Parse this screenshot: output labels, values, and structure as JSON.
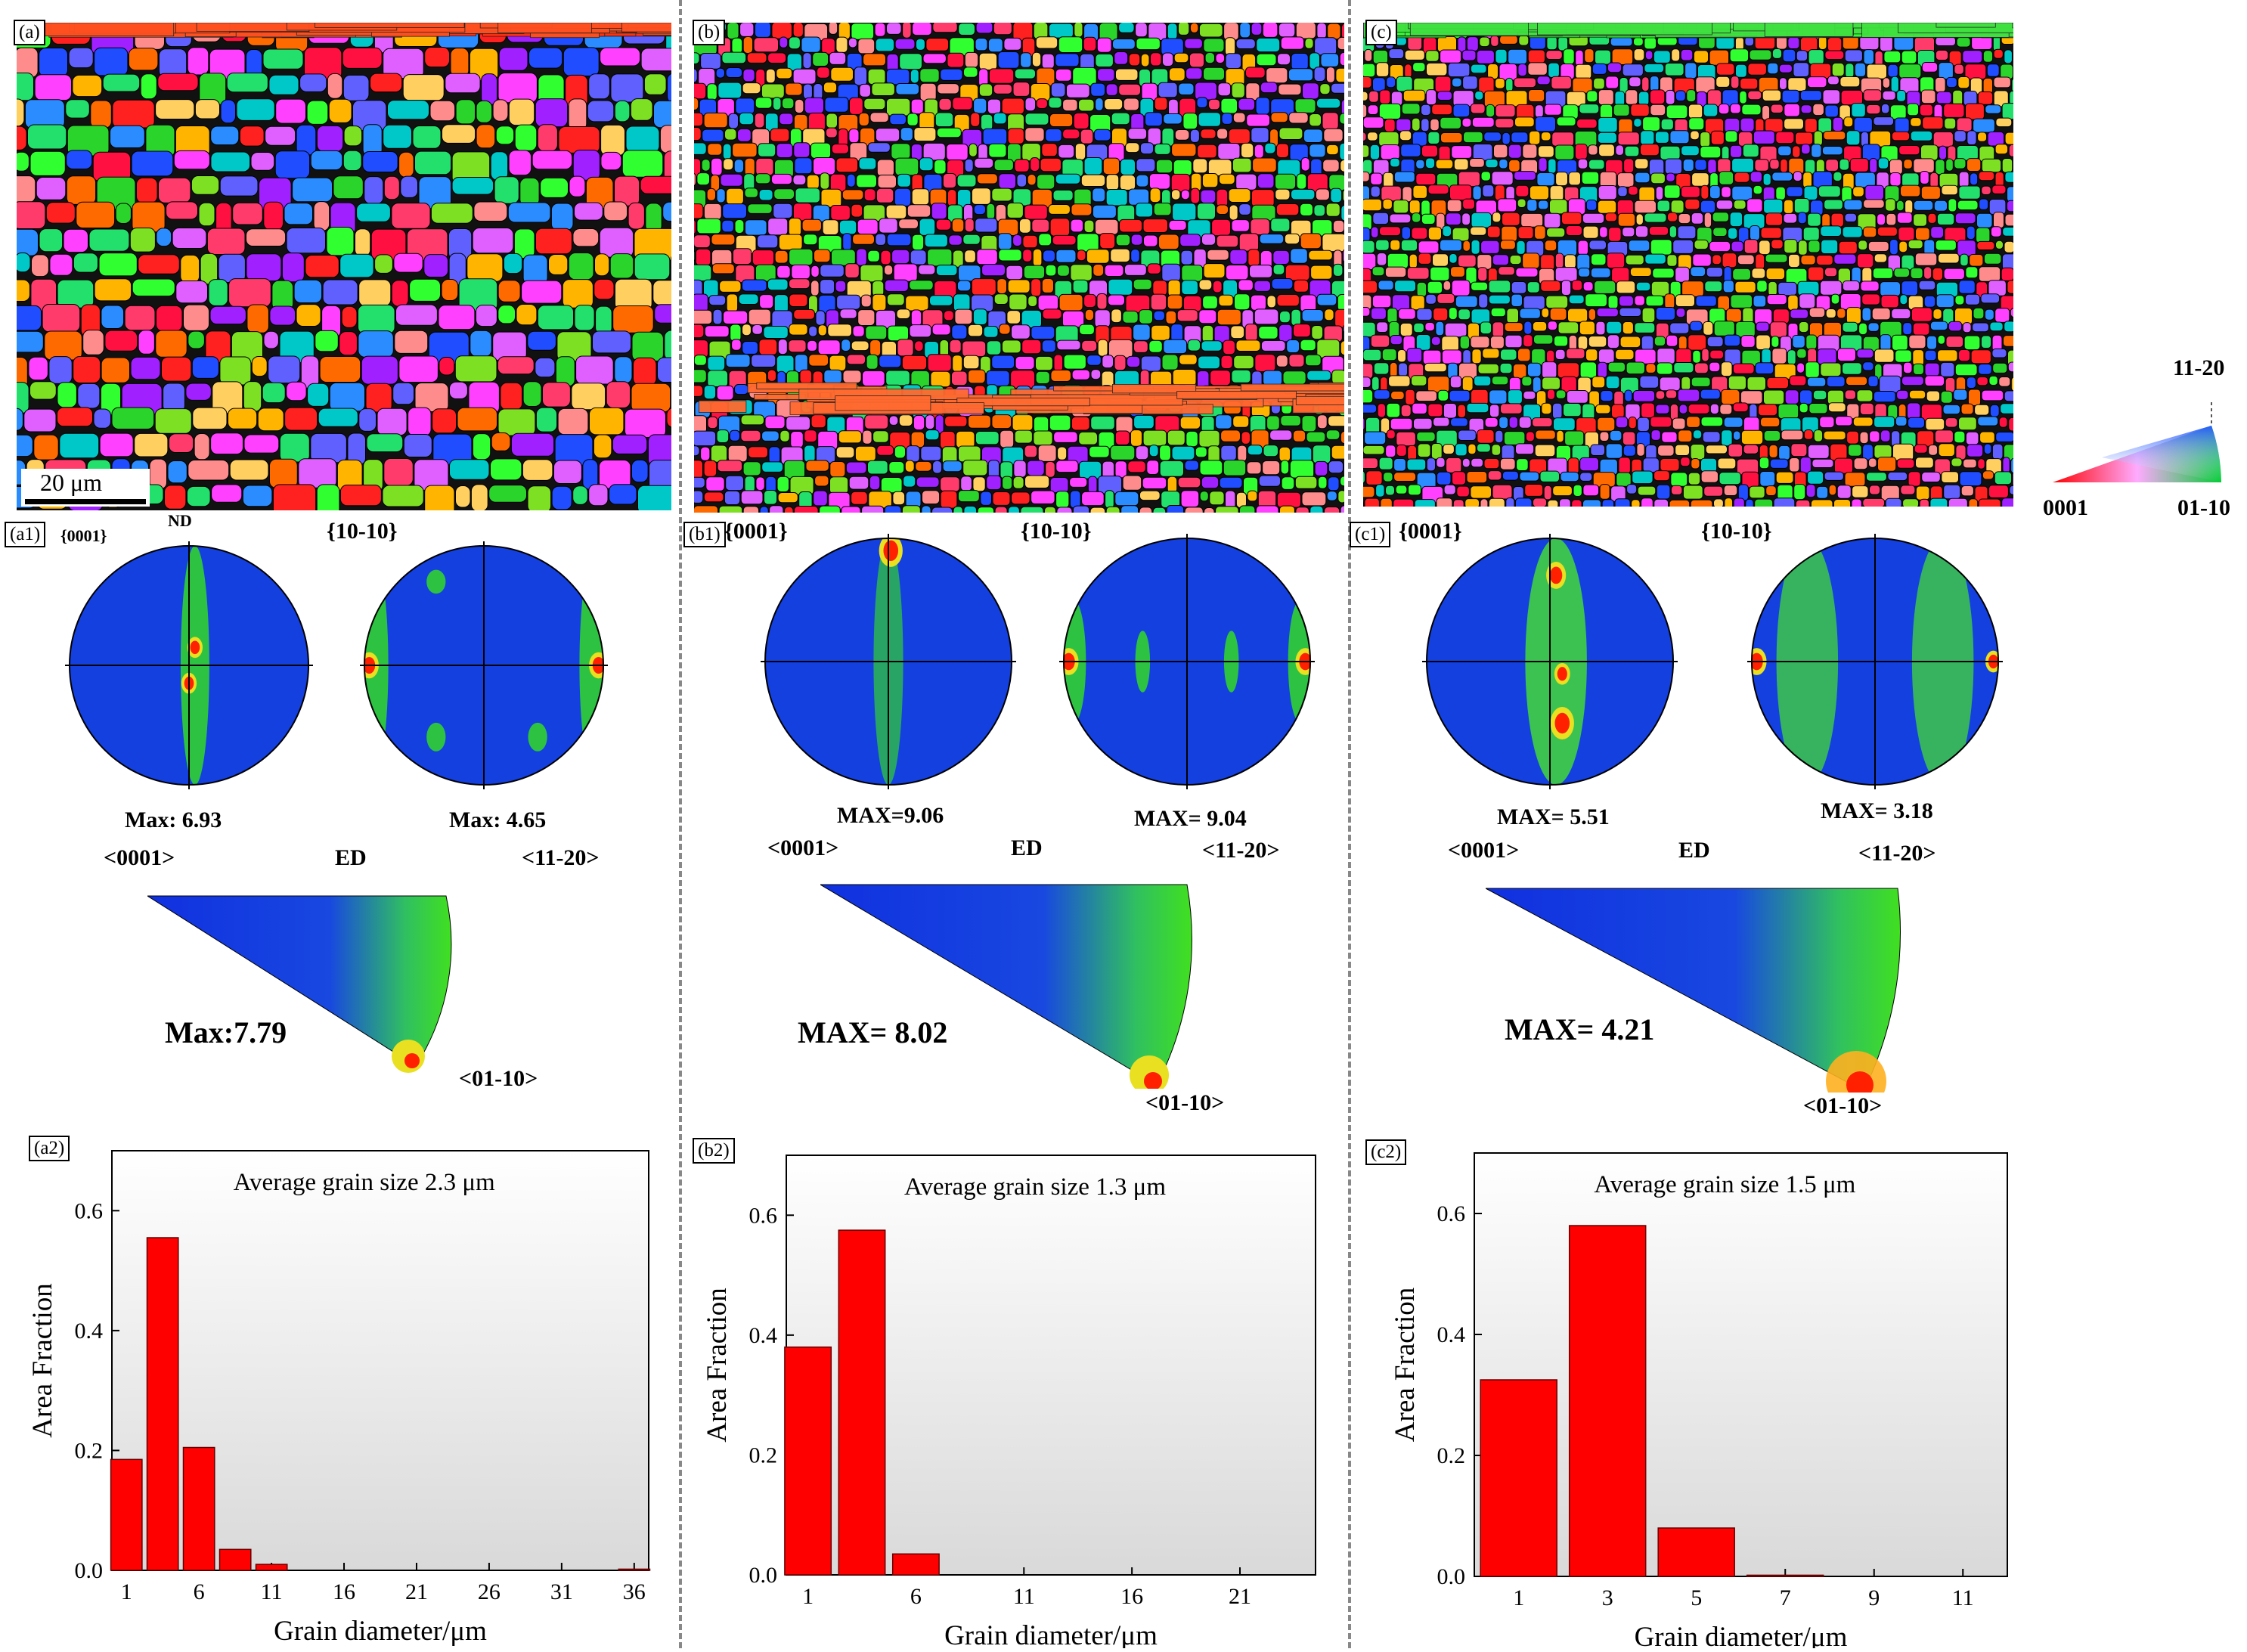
{
  "labels": {
    "a": "(a)",
    "b": "(b)",
    "c": "(c)",
    "a1": "(a1)",
    "b1": "(b1)",
    "c1": "(c1)",
    "a2": "(a2)",
    "b2": "(b2)",
    "c2": "(c2)"
  },
  "scale_bar": "20 μm",
  "ipf_key": {
    "top": "11-20",
    "left": "0001",
    "right": "01-10"
  },
  "pole_figures": {
    "a": {
      "nd": "ND",
      "p1": "{0001}",
      "p2": "{10-10}",
      "max1": "Max: 6.93",
      "max2": "Max: 4.65",
      "ed": "ED",
      "ax1": "<0001>",
      "ax2": "<11-20>",
      "ax3": "<01-10>",
      "ipf_max": "Max:7.79"
    },
    "b": {
      "p1": "{0001}",
      "p2": "{10-10}",
      "max1": "MAX=9.06",
      "max2": "MAX= 9.04",
      "ed": "ED",
      "ax1": "<0001>",
      "ax2": "<11-20>",
      "ax3": "<01-10>",
      "ipf_max": "MAX= 8.02"
    },
    "c": {
      "p1": "{0001}",
      "p2": "{10-10}",
      "max1": "MAX= 5.51",
      "max2": "MAX= 3.18",
      "ed": "ED",
      "ax1": "<0001>",
      "ax2": "<11-20>",
      "ax3": "<01-10>",
      "ipf_max": "MAX= 4.21"
    }
  },
  "colors": {
    "bar": "#ff0000",
    "divider": "#888888"
  },
  "chart_data": [
    {
      "type": "bar",
      "panel": "a2",
      "annotation": "Average grain size 2.3 μm",
      "xlabel": "Grain diameter/μm",
      "ylabel": "Area Fraction",
      "ylim": [
        0,
        0.7
      ],
      "yticks": [
        "0.0",
        "0.2",
        "0.4",
        "0.6"
      ],
      "xlim": [
        0,
        37
      ],
      "xticks": [
        "1",
        "6",
        "11",
        "16",
        "21",
        "26",
        "31",
        "36"
      ],
      "x": [
        1,
        3.5,
        6,
        8.5,
        11,
        36
      ],
      "values": [
        0.185,
        0.555,
        0.205,
        0.035,
        0.01,
        0.002
      ]
    },
    {
      "type": "bar",
      "panel": "b2",
      "annotation": "Average grain size 1.3 μm",
      "xlabel": "Grain diameter/μm",
      "ylabel": "Area Fraction",
      "ylim": [
        0,
        0.7
      ],
      "yticks": [
        "0.0",
        "0.2",
        "0.4",
        "0.6"
      ],
      "xlim": [
        0,
        24.5
      ],
      "xticks": [
        "1",
        "6",
        "11",
        "16",
        "21"
      ],
      "x": [
        1,
        3.5,
        6
      ],
      "values": [
        0.38,
        0.575,
        0.035
      ]
    },
    {
      "type": "bar",
      "panel": "c2",
      "annotation": "Average grain size 1.5 μm",
      "xlabel": "Grain diameter/μm",
      "ylabel": "Area Fraction",
      "ylim": [
        0,
        0.7
      ],
      "yticks": [
        "0.0",
        "0.2",
        "0.4",
        "0.6"
      ],
      "xlim": [
        0,
        12
      ],
      "xticks": [
        "1",
        "3",
        "5",
        "7",
        "9",
        "11"
      ],
      "x": [
        1,
        3,
        5,
        7
      ],
      "values": [
        0.325,
        0.58,
        0.08,
        0.002
      ]
    }
  ]
}
